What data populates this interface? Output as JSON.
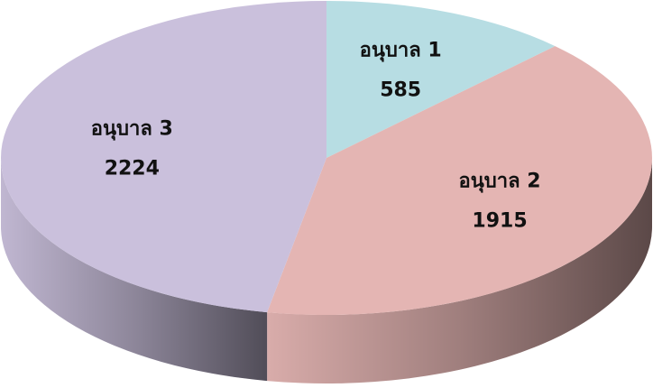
{
  "chart_data": {
    "type": "pie3d",
    "categories": [
      "อนุบาล 1",
      "อนุบาล 2",
      "อนุบาล 3"
    ],
    "values": [
      585,
      1915,
      2224
    ],
    "colors": [
      "#b7dde3",
      "#e4b5b3",
      "#cac0dc"
    ]
  }
}
